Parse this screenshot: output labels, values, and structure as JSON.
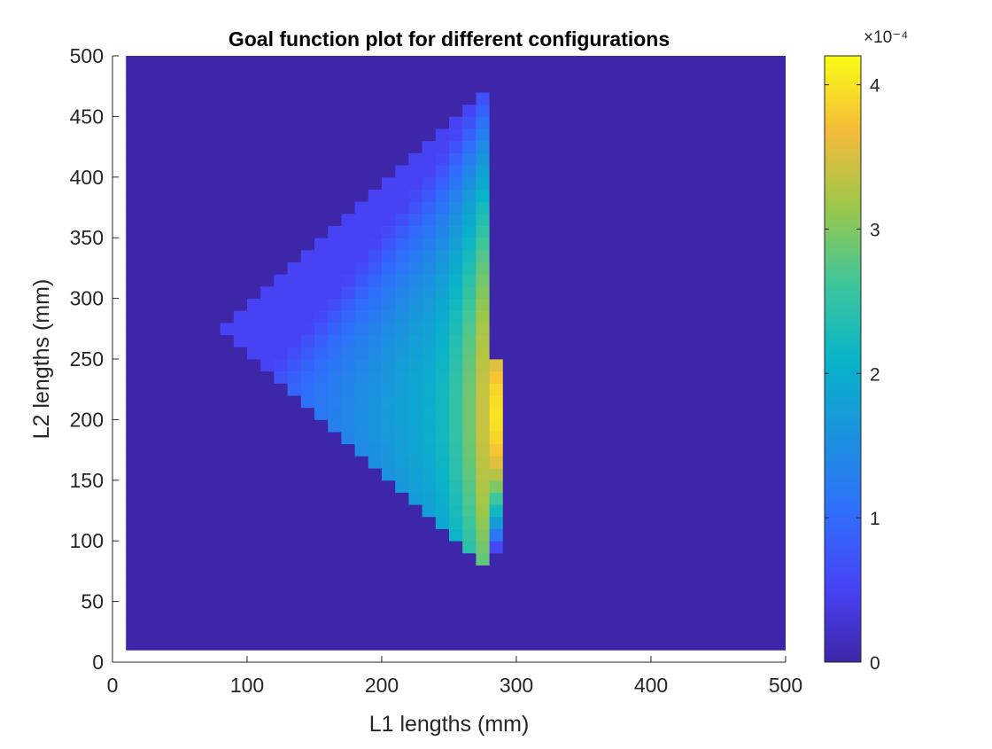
{
  "chart_data": {
    "type": "heatmap",
    "title": "Goal function plot for different configurations",
    "xlabel": "L1 lengths (mm)",
    "ylabel": "L2 lengths (mm)",
    "xlim": [
      0,
      500
    ],
    "ylim": [
      0,
      500
    ],
    "x_ticks": [
      "0",
      "100",
      "200",
      "300",
      "400",
      "500"
    ],
    "y_ticks": [
      "0",
      "50",
      "100",
      "150",
      "200",
      "250",
      "300",
      "350",
      "400",
      "450",
      "500"
    ],
    "grid": false,
    "data_extent": {
      "x": [
        10,
        500
      ],
      "y": [
        10,
        500
      ]
    },
    "cell_size": 10,
    "colormap": "parula",
    "colorbar": {
      "min": 0,
      "max": 4.2,
      "ticks": [
        "0",
        "1",
        "2",
        "3",
        "4"
      ],
      "exponent_label": "×10⁻⁴"
    },
    "overlay": {
      "color": "#8a7ec8",
      "opacity": 0.8
    },
    "nonzero_region": {
      "description_values": "goal function values (×10⁻⁴) over L1 × L2 grid",
      "cells": [
        {
          "x": 80,
          "y": [
            270,
            280
          ],
          "value": 0.65
        },
        {
          "x": 90,
          "y": [
            260,
            290
          ],
          "value": 0.7
        },
        {
          "x": 100,
          "y": [
            250,
            300
          ],
          "value": 0.75
        },
        {
          "x": 110,
          "y": [
            240,
            310
          ],
          "value": 0.8
        },
        {
          "x": 120,
          "y": [
            230,
            320
          ],
          "value": 0.9
        },
        {
          "x": 130,
          "y": [
            220,
            330
          ],
          "value": 1.0
        },
        {
          "x": 140,
          "y": [
            210,
            340
          ],
          "value": 1.1
        },
        {
          "x": 150,
          "y": [
            200,
            350
          ],
          "value": 1.2
        },
        {
          "x": 160,
          "y": [
            190,
            360
          ],
          "value": 1.3
        },
        {
          "x": 170,
          "y": [
            180,
            370
          ],
          "value": 1.4
        },
        {
          "x": 180,
          "y": [
            170,
            380
          ],
          "value": 1.5
        },
        {
          "x": 190,
          "y": [
            160,
            390
          ],
          "value": 1.6
        },
        {
          "x": 200,
          "y": [
            150,
            400
          ],
          "value": 1.7
        },
        {
          "x": 210,
          "y": [
            140,
            410
          ],
          "value": 1.8
        },
        {
          "x": 220,
          "y": [
            130,
            420
          ],
          "value": 1.9
        },
        {
          "x": 230,
          "y": [
            120,
            430
          ],
          "value": 2.0
        },
        {
          "x": 240,
          "y": [
            110,
            440
          ],
          "value": 2.2
        },
        {
          "x": 250,
          "y": [
            100,
            450
          ],
          "value": 2.5
        },
        {
          "x": 260,
          "y": [
            90,
            460
          ],
          "value": 2.9
        },
        {
          "x": 270,
          "y": [
            80,
            470
          ],
          "value": 3.4
        },
        {
          "x": 280,
          "y": [
            90,
            250
          ],
          "value": 4.0
        }
      ]
    }
  }
}
